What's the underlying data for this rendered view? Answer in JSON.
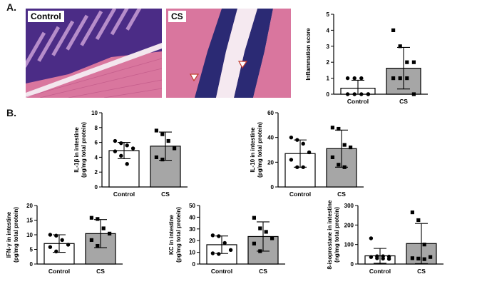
{
  "panels": {
    "A": "A.",
    "B": "B."
  },
  "micrographs": [
    {
      "label": "Control"
    },
    {
      "label": "CS"
    }
  ],
  "chart_data": [
    {
      "type": "bar",
      "id": "inflammation",
      "categories": [
        "Control",
        "CS"
      ],
      "values": [
        0.375,
        1.625
      ],
      "sd": [
        0.5,
        1.3
      ],
      "points": [
        [
          1,
          1,
          1,
          0,
          0,
          0,
          0,
          0
        ],
        [
          4,
          3,
          2,
          2,
          1,
          1,
          1,
          0
        ]
      ],
      "marker": [
        "circle",
        "square"
      ],
      "bar_colors": [
        "#ffffff",
        "#a6a6a6"
      ],
      "ylabel_lines": [
        "Inflammation score"
      ],
      "ylim": [
        0,
        5
      ],
      "yticks": [
        0,
        1,
        2,
        3,
        4,
        5
      ]
    },
    {
      "type": "bar",
      "id": "il1b",
      "categories": [
        "Control",
        "CS"
      ],
      "values": [
        4.9,
        5.5
      ],
      "sd": [
        1.1,
        1.9
      ],
      "points": [
        [
          6.2,
          5.9,
          5.6,
          5.2,
          4.8,
          4.2,
          3.1
        ],
        [
          7.6,
          7.1,
          6.2,
          5.2,
          4.0,
          3.7
        ]
      ],
      "marker": [
        "circle",
        "square"
      ],
      "bar_colors": [
        "#ffffff",
        "#a6a6a6"
      ],
      "ylabel_lines": [
        "IL-1β in intestine",
        "(pg/mg total protein)"
      ],
      "ylim": [
        0,
        10
      ],
      "yticks": [
        0,
        2,
        4,
        6,
        8,
        10
      ]
    },
    {
      "type": "bar",
      "id": "il10",
      "categories": [
        "Control",
        "CS"
      ],
      "values": [
        27,
        31
      ],
      "sd": [
        11,
        15
      ],
      "points": [
        [
          40,
          38,
          35,
          28,
          22,
          16,
          16
        ],
        [
          48,
          47,
          34,
          32,
          24,
          18,
          16
        ]
      ],
      "marker": [
        "circle",
        "square"
      ],
      "bar_colors": [
        "#ffffff",
        "#a6a6a6"
      ],
      "ylabel_lines": [
        "IL-10 in intestine",
        "(pg/mg total protein)"
      ],
      "ylim": [
        0,
        60
      ],
      "yticks": [
        0,
        20,
        40,
        60
      ]
    },
    {
      "type": "bar",
      "id": "ifng",
      "categories": [
        "Control",
        "CS"
      ],
      "values": [
        7,
        10.4
      ],
      "sd": [
        3,
        4.8
      ],
      "points": [
        [
          10,
          9.7,
          8.2,
          6.6,
          5.8,
          4.3
        ],
        [
          15.8,
          15.4,
          12.2,
          10.4,
          8.2,
          6.2
        ]
      ],
      "marker": [
        "circle",
        "square"
      ],
      "bar_colors": [
        "#ffffff",
        "#a6a6a6"
      ],
      "ylabel_lines": [
        "IFN-γ in intestine",
        "(pg/mg total protein)"
      ],
      "ylim": [
        0,
        20
      ],
      "yticks": [
        0,
        5,
        10,
        15,
        20
      ]
    },
    {
      "type": "bar",
      "id": "kc",
      "categories": [
        "Control",
        "CS"
      ],
      "values": [
        16.5,
        23.5
      ],
      "sd": [
        7.5,
        12.5
      ],
      "points": [
        [
          24.5,
          23.8,
          18,
          12,
          9.2,
          8.6
        ],
        [
          39.5,
          30.5,
          27.5,
          22,
          17.5,
          11
        ]
      ],
      "marker": [
        "circle",
        "square"
      ],
      "bar_colors": [
        "#ffffff",
        "#a6a6a6"
      ],
      "ylabel_lines": [
        "KC in intestine",
        "(pg/mg total protein)"
      ],
      "ylim": [
        0,
        50
      ],
      "yticks": [
        0,
        10,
        20,
        30,
        40,
        50
      ]
    },
    {
      "type": "bar",
      "id": "isoprostane",
      "categories": [
        "Control",
        "CS"
      ],
      "values": [
        42,
        105
      ],
      "sd": [
        38,
        103
      ],
      "points": [
        [
          132,
          40,
          40,
          38,
          36,
          30,
          28,
          26
        ],
        [
          265,
          225,
          100,
          36,
          30,
          28,
          25
        ]
      ],
      "marker": [
        "circle",
        "square"
      ],
      "bar_colors": [
        "#ffffff",
        "#a6a6a6"
      ],
      "ylabel_lines": [
        "8-isoprostane in intestine",
        "(ng/mg total protein)"
      ],
      "ylim": [
        0,
        300
      ],
      "yticks": [
        0,
        100,
        200,
        300
      ]
    }
  ]
}
